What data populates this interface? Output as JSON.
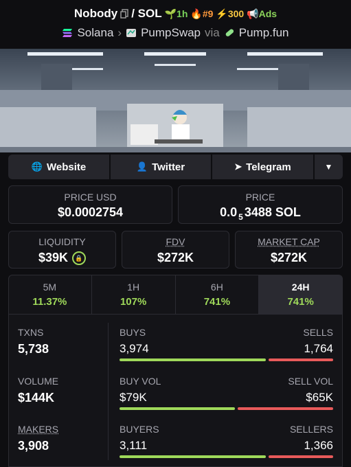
{
  "header": {
    "token": "Nobody",
    "pair": "/ SOL",
    "age": "1h",
    "rank": "#9",
    "boosts": "300",
    "ads": "Ads"
  },
  "breadcrumb": {
    "chain": "Solana",
    "dex": "PumpSwap",
    "via": "via",
    "launchpad": "Pump.fun"
  },
  "links": [
    "Website",
    "Twitter",
    "Telegram"
  ],
  "price_usd": {
    "label": "PRICE USD",
    "value": "$0.0002754"
  },
  "price": {
    "label": "PRICE",
    "prefix": "0.0",
    "zeros": "5",
    "digits": "3488 SOL"
  },
  "metrics": [
    {
      "label": "LIQUIDITY",
      "value": "$39K"
    },
    {
      "label": "FDV",
      "value": "$272K"
    },
    {
      "label": "MARKET CAP",
      "value": "$272K"
    }
  ],
  "timeframes": [
    {
      "label": "5M",
      "change": "11.37%"
    },
    {
      "label": "1H",
      "change": "107%"
    },
    {
      "label": "6H",
      "change": "741%"
    },
    {
      "label": "24H",
      "change": "741%"
    }
  ],
  "selected_timeframe": 3,
  "stats": [
    {
      "label": "TXNS",
      "value": "5,738",
      "left_label": "BUYS",
      "right_label": "SELLS",
      "left": {
        "value": 3974,
        "label": "3,974"
      },
      "right": {
        "value": 1764,
        "label": "1,764"
      }
    },
    {
      "label": "VOLUME",
      "value": "$144K",
      "left_label": "BUY VOL",
      "right_label": "SELL VOL",
      "left": {
        "value": 79000,
        "label": "$79K"
      },
      "right": {
        "value": 65000,
        "label": "$65K"
      }
    },
    {
      "label": "MAKERS",
      "value": "3,908",
      "left_label": "BUYERS",
      "right_label": "SELLERS",
      "left": {
        "value": 3111,
        "label": "3,111"
      },
      "right": {
        "value": 1366,
        "label": "1,366"
      }
    }
  ]
}
